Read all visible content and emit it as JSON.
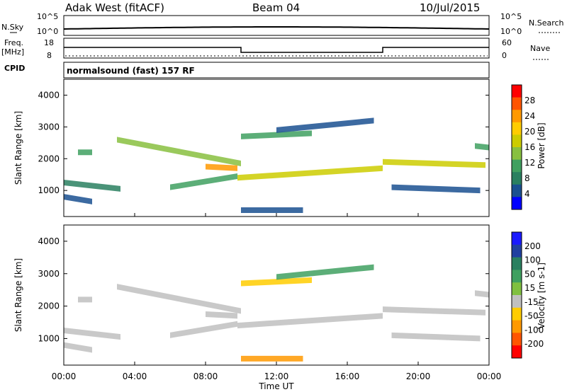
{
  "header": {
    "radar": "Adak West (fitACF)",
    "beam": "Beam 04",
    "date": "10/Jul/2015"
  },
  "nsky_panel": {
    "left_label": "N.Sky",
    "right_label": "N.Search",
    "left_ticks": [
      "10^5",
      "10^0"
    ],
    "right_ticks": [
      "10^5",
      "10^0"
    ]
  },
  "freq_panel": {
    "left_label_line1": "Freq.",
    "left_label_line2": "[MHz]",
    "right_label": "Nave",
    "left_ticks": [
      "18",
      "8"
    ],
    "right_ticks": [
      "60",
      "0"
    ]
  },
  "cpid": {
    "label": "CPID",
    "value": "normalsound (fast) 157 RF"
  },
  "power_colorbar": {
    "label": "Power [dB]",
    "ticks": [
      "28",
      "24",
      "20",
      "16",
      "12",
      "8",
      "4"
    ],
    "colors": [
      "#ff0000",
      "#ff5500",
      "#ff9900",
      "#ffcc00",
      "#cccc00",
      "#88c040",
      "#40a060",
      "#2a8060",
      "#1a5090",
      "#0000ff"
    ]
  },
  "velocity_colorbar": {
    "label": "Velocity [m s-1]",
    "ticks": [
      "200",
      "100",
      "50",
      "15",
      "-15",
      "-50",
      "-100",
      "-200"
    ],
    "colors": [
      "#1a1aff",
      "#2040a0",
      "#2a8060",
      "#40a060",
      "#80c040",
      "#c0c0c0",
      "#ffcc00",
      "#ff9900",
      "#ff5500",
      "#ff0000"
    ]
  },
  "x_axis": {
    "label": "Time UT",
    "ticks": [
      "00:00",
      "04:00",
      "08:00",
      "12:00",
      "16:00",
      "20:00",
      "00:00"
    ]
  },
  "chart_data": [
    {
      "type": "heatmap",
      "title": "Power",
      "ylabel": "Slant Range [km]",
      "xlabel": "",
      "ylim": [
        180,
        4500
      ],
      "yticks": [
        1000,
        2000,
        3000,
        4000
      ],
      "xticks_hours": [
        0,
        4,
        8,
        12,
        16,
        20,
        24
      ],
      "colorbar": "Power [dB]",
      "bands": [
        {
          "t0": 0.0,
          "t1": 3.2,
          "r_start": 1250,
          "r_end": 1050,
          "value": 10
        },
        {
          "t0": 0.0,
          "t1": 1.6,
          "r_start": 800,
          "r_end": 650,
          "value": 8
        },
        {
          "t0": 0.8,
          "t1": 1.6,
          "r_start": 2200,
          "r_end": 2200,
          "value": 12
        },
        {
          "t0": 3.0,
          "t1": 10.0,
          "r_start": 2600,
          "r_end": 1850,
          "value": 16
        },
        {
          "t0": 6.0,
          "t1": 9.8,
          "r_start": 1100,
          "r_end": 1450,
          "value": 12
        },
        {
          "t0": 8.0,
          "t1": 9.8,
          "r_start": 1750,
          "r_end": 1700,
          "value": 24
        },
        {
          "t0": 9.8,
          "t1": 18.0,
          "r_start": 1400,
          "r_end": 1700,
          "value": 20
        },
        {
          "t0": 10.0,
          "t1": 14.0,
          "r_start": 2700,
          "r_end": 2800,
          "value": 12
        },
        {
          "t0": 12.0,
          "t1": 17.5,
          "r_start": 2900,
          "r_end": 3200,
          "value": 8
        },
        {
          "t0": 10.0,
          "t1": 13.5,
          "r_start": 380,
          "r_end": 380,
          "value": 6
        },
        {
          "t0": 18.0,
          "t1": 23.8,
          "r_start": 1900,
          "r_end": 1800,
          "value": 20
        },
        {
          "t0": 18.5,
          "t1": 23.5,
          "r_start": 1100,
          "r_end": 1000,
          "value": 8
        },
        {
          "t0": 23.2,
          "t1": 24.0,
          "r_start": 2400,
          "r_end": 2350,
          "value": 12
        }
      ]
    },
    {
      "type": "heatmap",
      "title": "Velocity",
      "ylabel": "Slant Range [km]",
      "xlabel": "Time UT",
      "ylim": [
        180,
        4500
      ],
      "yticks": [
        1000,
        2000,
        3000,
        4000
      ],
      "xticks_hours": [
        0,
        4,
        8,
        12,
        16,
        20,
        24
      ],
      "colorbar": "Velocity [m s-1]",
      "bands": [
        {
          "t0": 0.0,
          "t1": 3.2,
          "r_start": 1250,
          "r_end": 1050,
          "value": 0
        },
        {
          "t0": 0.0,
          "t1": 1.6,
          "r_start": 800,
          "r_end": 650,
          "value": 0
        },
        {
          "t0": 0.8,
          "t1": 1.6,
          "r_start": 2200,
          "r_end": 2200,
          "value": 0
        },
        {
          "t0": 3.0,
          "t1": 10.0,
          "r_start": 2600,
          "r_end": 1850,
          "value": 0
        },
        {
          "t0": 6.0,
          "t1": 9.8,
          "r_start": 1100,
          "r_end": 1450,
          "value": 0
        },
        {
          "t0": 8.0,
          "t1": 9.8,
          "r_start": 1750,
          "r_end": 1700,
          "value": 0
        },
        {
          "t0": 9.8,
          "t1": 18.0,
          "r_start": 1400,
          "r_end": 1700,
          "value": 0
        },
        {
          "t0": 10.0,
          "t1": 14.0,
          "r_start": 2700,
          "r_end": 2800,
          "value": -30
        },
        {
          "t0": 12.0,
          "t1": 17.5,
          "r_start": 2900,
          "r_end": 3200,
          "value": 40
        },
        {
          "t0": 10.0,
          "t1": 13.5,
          "r_start": 380,
          "r_end": 380,
          "value": -80
        },
        {
          "t0": 18.0,
          "t1": 23.8,
          "r_start": 1900,
          "r_end": 1800,
          "value": 0
        },
        {
          "t0": 18.5,
          "t1": 23.5,
          "r_start": 1100,
          "r_end": 1000,
          "value": 0
        },
        {
          "t0": 23.2,
          "t1": 24.0,
          "r_start": 2400,
          "r_end": 2350,
          "value": 0
        }
      ]
    }
  ]
}
